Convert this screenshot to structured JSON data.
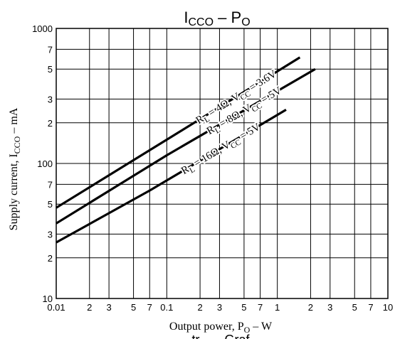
{
  "chart_data": {
    "type": "line",
    "title": {
      "main": "I",
      "sub": "CCO",
      "sep": " – ",
      "p": "P",
      "psub": "O"
    },
    "xlabel": {
      "main": "Output power, P",
      "sub": "O",
      "unit": " – W"
    },
    "ylabel": {
      "main": "Supply current, I",
      "sub": "CCO",
      "unit": " – mA"
    },
    "bottom_fragment": "tr       Graf",
    "xscale": "log",
    "yscale": "log",
    "xlim": [
      0.01,
      10
    ],
    "ylim": [
      10,
      1000
    ],
    "grid": true,
    "x_ticks": [
      {
        "v": 0.01,
        "t": "0.01"
      },
      {
        "v": 0.02,
        "t": "2"
      },
      {
        "v": 0.03,
        "t": "3"
      },
      {
        "v": 0.05,
        "t": "5"
      },
      {
        "v": 0.07,
        "t": "7"
      },
      {
        "v": 0.1,
        "t": "0.1"
      },
      {
        "v": 0.2,
        "t": "2"
      },
      {
        "v": 0.3,
        "t": "3"
      },
      {
        "v": 0.5,
        "t": "5"
      },
      {
        "v": 0.7,
        "t": "7"
      },
      {
        "v": 1,
        "t": "1"
      },
      {
        "v": 2,
        "t": "2"
      },
      {
        "v": 3,
        "t": "3"
      },
      {
        "v": 5,
        "t": "5"
      },
      {
        "v": 7,
        "t": "7"
      },
      {
        "v": 10,
        "t": "10"
      }
    ],
    "y_ticks": [
      {
        "v": 10,
        "t": "10"
      },
      {
        "v": 20,
        "t": "2"
      },
      {
        "v": 30,
        "t": "3"
      },
      {
        "v": 50,
        "t": "5"
      },
      {
        "v": 70,
        "t": "7"
      },
      {
        "v": 100,
        "t": "100"
      },
      {
        "v": 200,
        "t": "2"
      },
      {
        "v": 300,
        "t": "3"
      },
      {
        "v": 500,
        "t": "5"
      },
      {
        "v": 700,
        "t": "7"
      },
      {
        "v": 1000,
        "t": "1000"
      }
    ],
    "series": [
      {
        "label": [
          "R",
          "L",
          " = 4Ω, V",
          "CC",
          " = 3.6V"
        ],
        "x": [
          0.01,
          0.1,
          1.6
        ],
        "y": [
          47,
          150,
          610
        ]
      },
      {
        "label": [
          "R",
          "L",
          " = 8Ω, V",
          "CC",
          " = 5V"
        ],
        "x": [
          0.01,
          0.1,
          2.2
        ],
        "y": [
          36,
          115,
          500
        ]
      },
      {
        "label": [
          "R",
          "L",
          " = 16Ω, V",
          "CC",
          " = 5V"
        ],
        "x": [
          0.01,
          0.07,
          1.2
        ],
        "y": [
          26,
          63,
          250
        ]
      }
    ]
  }
}
